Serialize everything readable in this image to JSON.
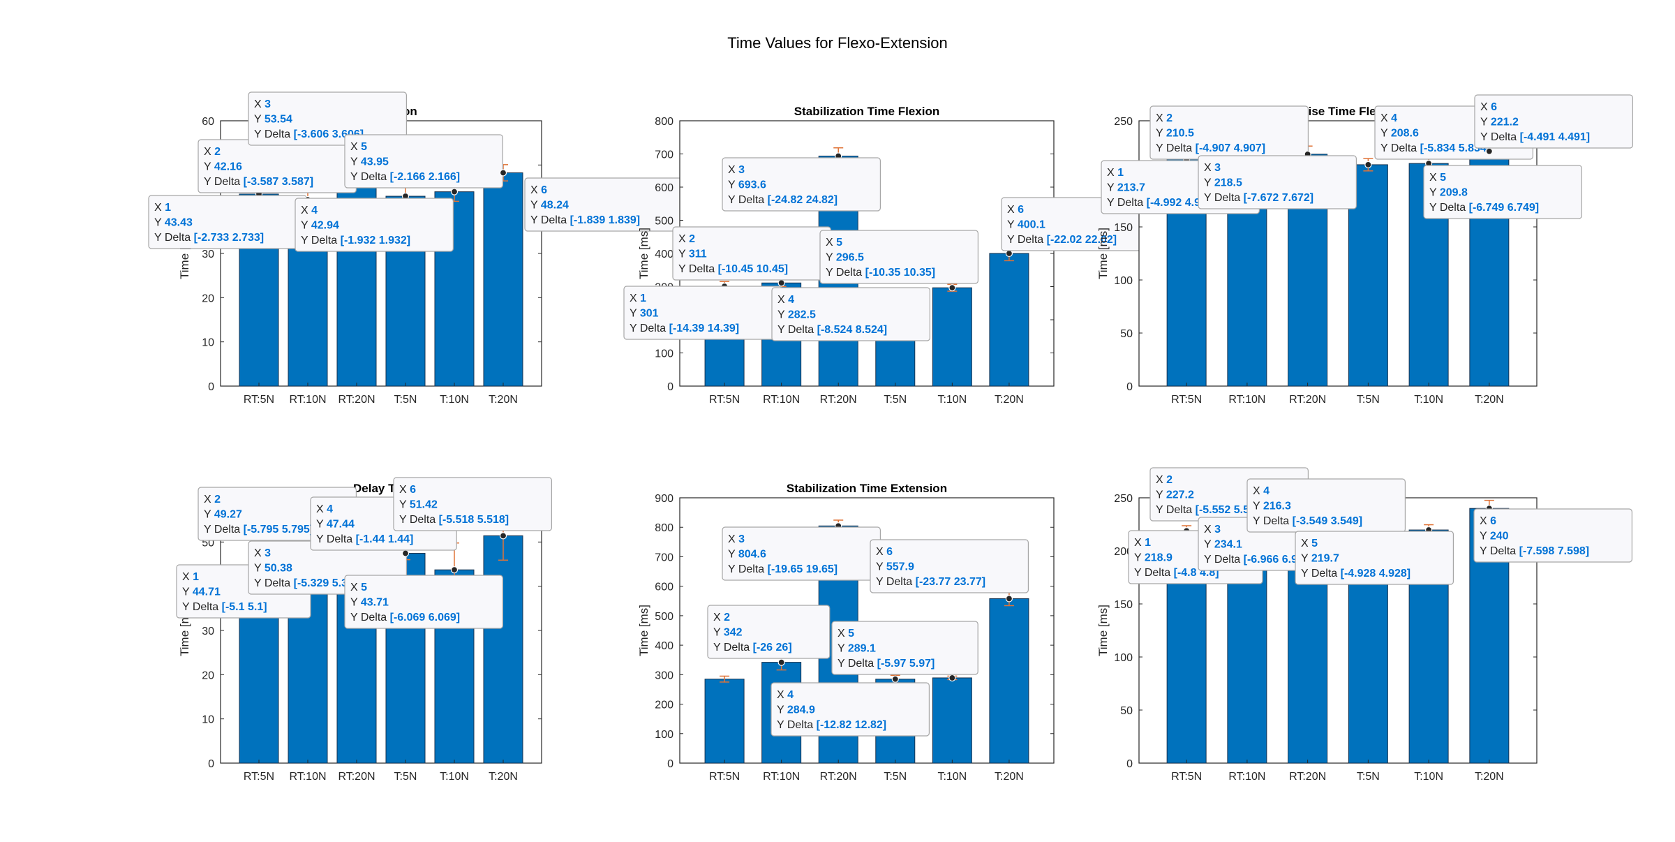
{
  "figure": {
    "title": "Time Values for Flexo-Extension"
  },
  "colors": {
    "bar": "#0072bd",
    "bar_edge": "#17324f",
    "errorbar": "#e07438",
    "tip_bg": "#f8f8fb",
    "tip_border": "#a6a6a6",
    "tip_value": "#0072d6"
  },
  "chart_data": [
    {
      "type": "bar",
      "title": "Delay Time Flexion",
      "title_visible": "Time Flexion",
      "categories": [
        "RT:5N",
        "RT:10N",
        "RT:20N",
        "T:5N",
        "T:10N",
        "T:20N"
      ],
      "values": [
        43.43,
        42.16,
        53.54,
        42.94,
        43.95,
        48.24
      ],
      "errors": [
        2.733,
        3.587,
        3.606,
        1.932,
        2.166,
        1.839
      ],
      "ylim": [
        0,
        60
      ],
      "yticks": [
        0,
        10,
        20,
        30,
        40,
        50,
        60
      ],
      "ylabel": "Time [ms]",
      "datatips": [
        {
          "x": "1",
          "y": "43.43",
          "d": "[-2.733 2.733]"
        },
        {
          "x": "2",
          "y": "42.16",
          "d": "[-3.587 3.587]"
        },
        {
          "x": "3",
          "y": "53.54",
          "d": "[-3.606 3.606]"
        },
        {
          "x": "4",
          "y": "42.94",
          "d": "[-1.932 1.932]"
        },
        {
          "x": "5",
          "y": "43.95",
          "d": "[-2.166 2.166]"
        },
        {
          "x": "6",
          "y": "48.24",
          "d": "[-1.839 1.839]"
        }
      ]
    },
    {
      "type": "bar",
      "title": "Stabilization Time Flexion",
      "categories": [
        "RT:5N",
        "RT:10N",
        "RT:20N",
        "T:5N",
        "T:10N",
        "T:20N"
      ],
      "values": [
        301,
        311,
        693.6,
        282.5,
        296.5,
        400.1
      ],
      "errors": [
        14.39,
        10.45,
        24.82,
        8.524,
        10.35,
        22.02
      ],
      "ylim": [
        0,
        800
      ],
      "yticks": [
        0,
        100,
        200,
        300,
        400,
        500,
        600,
        700,
        800
      ],
      "ylabel": "Time [ms]",
      "datatips": [
        {
          "x": "1",
          "y": "301",
          "d": "[-14.39 14.39]"
        },
        {
          "x": "2",
          "y": "311",
          "d": "[-10.45 10.45]"
        },
        {
          "x": "3",
          "y": "693.6",
          "d": "[-24.82 24.82]"
        },
        {
          "x": "4",
          "y": "282.5",
          "d": "[-8.524 8.524]"
        },
        {
          "x": "5",
          "y": "296.5",
          "d": "[-10.35 10.35]"
        },
        {
          "x": "6",
          "y": "400.1",
          "d": "[-22.02 22.02]"
        }
      ]
    },
    {
      "type": "bar",
      "title": "Rise Time Flexion",
      "title_visible": "Rise Time Fle",
      "categories": [
        "RT:5N",
        "RT:10N",
        "RT:20N",
        "T:5N",
        "T:10N",
        "T:20N"
      ],
      "values": [
        213.7,
        210.5,
        218.5,
        208.6,
        209.8,
        221.2
      ],
      "errors": [
        4.992,
        4.907,
        7.672,
        5.834,
        6.749,
        4.491
      ],
      "ylim": [
        0,
        250
      ],
      "yticks": [
        0,
        50,
        100,
        150,
        200,
        250
      ],
      "ylabel": "Time [ms]",
      "datatips": [
        {
          "x": "1",
          "y": "213.7",
          "d": "[-4.992 4.992]"
        },
        {
          "x": "2",
          "y": "210.5",
          "d": "[-4.907 4.907]"
        },
        {
          "x": "3",
          "y": "218.5",
          "d": "[-7.672 7.672]"
        },
        {
          "x": "4",
          "y": "208.6",
          "d": "[-5.834 5.834]"
        },
        {
          "x": "5",
          "y": "209.8",
          "d": "[-6.749 6.749]"
        },
        {
          "x": "6",
          "y": "221.2",
          "d": "[-4.491 4.491]"
        }
      ]
    },
    {
      "type": "bar",
      "title": "Delay Time Extension",
      "title_visible": "Delay Tim",
      "categories": [
        "RT:5N",
        "RT:10N",
        "RT:20N",
        "T:5N",
        "T:10N",
        "T:20N"
      ],
      "values": [
        44.71,
        49.27,
        50.38,
        47.44,
        43.71,
        51.42
      ],
      "errors": [
        5.1,
        5.795,
        5.329,
        1.44,
        6.069,
        5.518
      ],
      "ylim": [
        0,
        60
      ],
      "yticks": [
        0,
        10,
        20,
        30,
        40,
        50,
        60
      ],
      "ylabel": "Time [ms]",
      "datatips": [
        {
          "x": "1",
          "y": "44.71",
          "d": "[-5.1 5.1]"
        },
        {
          "x": "2",
          "y": "49.27",
          "d": "[-5.795 5.795]"
        },
        {
          "x": "3",
          "y": "50.38",
          "d": "[-5.329 5.329]"
        },
        {
          "x": "4",
          "y": "47.44",
          "d": "[-1.44 1.44]"
        },
        {
          "x": "5",
          "y": "43.71",
          "d": "[-6.069 6.069]"
        },
        {
          "x": "6",
          "y": "51.42",
          "d": "[-5.518 5.518]"
        }
      ]
    },
    {
      "type": "bar",
      "title": "Stabilization Time Extension",
      "categories": [
        "RT:5N",
        "RT:10N",
        "RT:20N",
        "T:5N",
        "T:10N",
        "T:20N"
      ],
      "values": [
        285,
        342,
        804.6,
        284.9,
        289.1,
        557.9
      ],
      "errors": [
        10,
        26,
        19.65,
        12.82,
        5.97,
        23.77
      ],
      "ylim": [
        0,
        900
      ],
      "yticks": [
        0,
        100,
        200,
        300,
        400,
        500,
        600,
        700,
        800,
        900
      ],
      "ylabel": "Time [ms]",
      "datatips": [
        {
          "x": "2",
          "y": "342",
          "d": "[-26 26]"
        },
        {
          "x": "3",
          "y": "804.6",
          "d": "[-19.65 19.65]"
        },
        {
          "x": "4",
          "y": "284.9",
          "d": "[-12.82 12.82]"
        },
        {
          "x": "5",
          "y": "289.1",
          "d": "[-5.97 5.97]"
        },
        {
          "x": "6",
          "y": "557.9",
          "d": "[-23.77 23.77]"
        }
      ]
    },
    {
      "type": "bar",
      "title": "Rise Time Extension",
      "title_visible": "xtension",
      "categories": [
        "RT:5N",
        "RT:10N",
        "RT:20N",
        "T:5N",
        "T:10N",
        "T:20N"
      ],
      "values": [
        218.9,
        227.2,
        234.1,
        216.3,
        219.7,
        240
      ],
      "errors": [
        4.8,
        5.552,
        6.966,
        3.549,
        4.928,
        7.598
      ],
      "ylim": [
        0,
        250
      ],
      "yticks": [
        0,
        50,
        100,
        150,
        200,
        250
      ],
      "ylabel": "Time [ms]",
      "datatips": [
        {
          "x": "1",
          "y": "218.9",
          "d": "[-4.8 4.8]"
        },
        {
          "x": "2",
          "y": "227.2",
          "d": "[-5.552 5.552]"
        },
        {
          "x": "3",
          "y": "234.1",
          "d": "[-6.966 6.966]"
        },
        {
          "x": "4",
          "y": "216.3",
          "d": "[-3.549 3.549]"
        },
        {
          "x": "5",
          "y": "219.7",
          "d": "[-4.928 4.928]"
        },
        {
          "x": "6",
          "y": "240",
          "d": "[-7.598 7.598]"
        }
      ]
    }
  ]
}
